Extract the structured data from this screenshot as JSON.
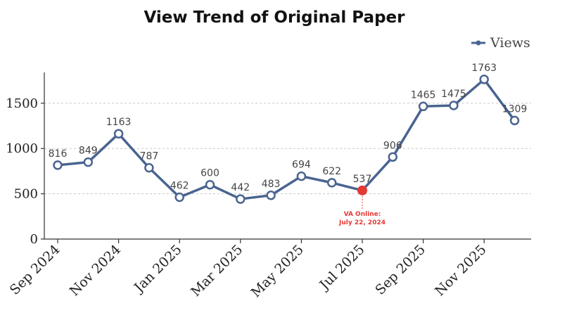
{
  "chart_data": {
    "type": "line",
    "title": "View Trend of Original Paper",
    "xlabel": "",
    "ylabel": "",
    "ylim": [
      0,
      1850
    ],
    "yticks": [
      0,
      500,
      1000,
      1500
    ],
    "x_tick_labels": [
      "Sep 2024",
      "Nov 2024",
      "Jan 2025",
      "Mar 2025",
      "May 2025",
      "Jul 2025",
      "Sep 2025",
      "Nov 2025"
    ],
    "x": [
      "Sep 2024",
      "Oct 2024",
      "Nov 2024",
      "Dec 2024",
      "Jan 2025",
      "Feb 2025",
      "Mar 2025",
      "Apr 2025",
      "May 2025",
      "Jun 2025",
      "Jul 2025",
      "Aug 2025",
      "Sep 2025",
      "Oct 2025",
      "Nov 2025",
      "Dec 2025"
    ],
    "series": [
      {
        "name": "Views",
        "color": "#4a6490",
        "values": [
          816,
          849,
          1163,
          787,
          462,
          600,
          442,
          483,
          694,
          622,
          537,
          906,
          1465,
          1475,
          1763,
          1309
        ]
      }
    ],
    "data_labels": [
      "816",
      "849",
      "1163",
      "787",
      "462",
      "600",
      "442",
      "483",
      "694",
      "622",
      "537",
      "906",
      "1465",
      "1475",
      "1763",
      "1309"
    ],
    "highlight": {
      "index": 10,
      "color": "#e53935",
      "label_line1": "VA Online:",
      "label_line2": "July 22, 2024"
    },
    "grid": "horizontal-dotted",
    "legend_position": "top-right"
  }
}
